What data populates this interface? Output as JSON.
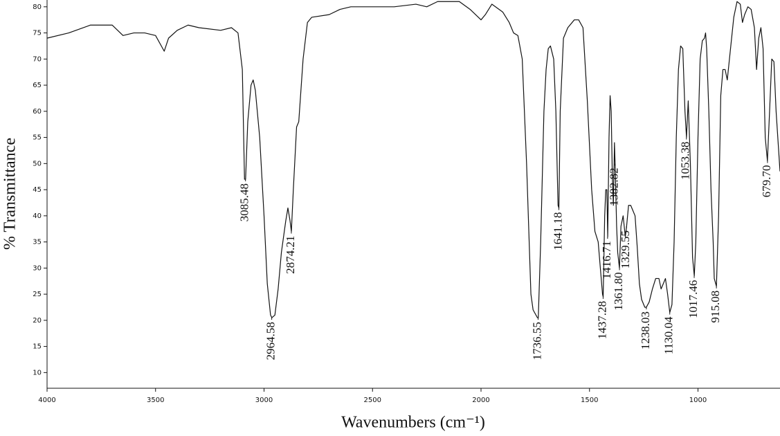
{
  "chart_data": {
    "type": "line",
    "x_label": "Wavenumbers (cm⁻¹)",
    "y_label": "% Transmittance",
    "xlim": [
      4000,
      622
    ],
    "ylim": [
      7,
      81.3
    ],
    "xticks": [
      4000,
      3500,
      3000,
      2500,
      2000,
      1500,
      1000
    ],
    "yticks": [
      10,
      15,
      20,
      25,
      30,
      35,
      40,
      45,
      50,
      55,
      60,
      65,
      70,
      75,
      80
    ],
    "grid": false,
    "x": [
      4000,
      3900,
      3800,
      3700,
      3650,
      3600,
      3550,
      3500,
      3460,
      3440,
      3400,
      3350,
      3300,
      3200,
      3150,
      3120,
      3100,
      3090,
      3085,
      3075,
      3060,
      3050,
      3040,
      3020,
      3000,
      2985,
      2970,
      2964,
      2950,
      2935,
      2920,
      2900,
      2890,
      2880,
      2874,
      2865,
      2850,
      2840,
      2820,
      2800,
      2780,
      2700,
      2650,
      2600,
      2500,
      2400,
      2300,
      2250,
      2200,
      2100,
      2050,
      2000,
      1980,
      1950,
      1900,
      1870,
      1850,
      1830,
      1810,
      1790,
      1770,
      1760,
      1740,
      1736,
      1725,
      1710,
      1700,
      1690,
      1680,
      1665,
      1655,
      1645,
      1641,
      1635,
      1620,
      1600,
      1570,
      1550,
      1530,
      1510,
      1490,
      1475,
      1460,
      1450,
      1440,
      1437,
      1430,
      1425,
      1420,
      1416,
      1410,
      1405,
      1400,
      1395,
      1390,
      1385,
      1382,
      1375,
      1370,
      1362,
      1355,
      1345,
      1335,
      1329,
      1320,
      1310,
      1300,
      1290,
      1280,
      1270,
      1260,
      1245,
      1238,
      1225,
      1210,
      1195,
      1180,
      1170,
      1160,
      1150,
      1140,
      1130,
      1120,
      1110,
      1100,
      1090,
      1080,
      1070,
      1060,
      1053,
      1045,
      1035,
      1025,
      1017,
      1010,
      1000,
      990,
      980,
      970,
      965,
      960,
      950,
      940,
      930,
      925,
      915,
      905,
      895,
      885,
      875,
      865,
      850,
      835,
      820,
      805,
      795,
      785,
      770,
      755,
      740,
      730,
      720,
      710,
      700,
      690,
      680,
      670,
      660,
      650,
      640,
      622
    ],
    "series": [
      {
        "color": "#111111",
        "values": [
          74,
          75,
          76.5,
          76.5,
          74.5,
          75,
          75,
          74.5,
          71.5,
          74,
          75.5,
          76.5,
          76,
          75.5,
          76,
          75,
          68,
          47,
          47,
          58,
          65,
          66,
          64,
          55,
          40,
          27,
          21,
          20.5,
          21,
          26,
          33,
          39,
          41.5,
          39,
          37,
          45,
          57,
          58,
          70,
          77,
          78,
          78.5,
          79.5,
          80,
          80,
          80,
          80.5,
          80,
          81,
          81,
          79.5,
          77.5,
          78.5,
          80.5,
          79,
          77,
          75,
          74.5,
          70,
          50,
          25,
          22,
          20.5,
          20.5,
          35,
          60,
          68,
          72,
          72.5,
          70,
          60,
          42,
          41.5,
          60,
          74,
          76,
          77.5,
          77.5,
          76,
          62,
          45,
          37,
          35,
          30,
          25,
          24.5,
          40,
          45,
          45,
          36,
          55,
          63,
          60,
          48,
          42,
          54,
          50,
          38,
          33,
          30,
          38,
          40,
          36,
          38,
          42,
          42,
          41,
          40,
          34,
          27,
          24,
          22.5,
          22.5,
          23.5,
          26,
          28,
          28,
          26,
          27,
          28,
          25,
          21.5,
          23,
          35,
          55,
          68,
          72.5,
          72,
          60,
          55,
          62,
          50,
          32,
          28.5,
          35,
          55,
          70,
          73.5,
          74,
          75,
          72,
          60,
          45,
          35,
          28,
          26.5,
          40,
          63,
          68,
          68,
          66,
          72,
          78,
          81,
          80.5,
          77,
          78.5,
          80,
          79.5,
          76,
          68,
          74,
          76,
          72,
          55,
          50.5,
          60,
          70,
          69.5,
          60,
          48.5
        ]
      }
    ],
    "annotations": [
      {
        "label": "3085.48",
        "x": 3085.48,
        "y": 47
      },
      {
        "label": "2964.58",
        "x": 2964.58,
        "y": 20.5
      },
      {
        "label": "2874.21",
        "x": 2874.21,
        "y": 37
      },
      {
        "label": "1736.55",
        "x": 1736.55,
        "y": 20.5
      },
      {
        "label": "1641.18",
        "x": 1641.18,
        "y": 41.5
      },
      {
        "label": "1437.28",
        "x": 1437.28,
        "y": 24.5
      },
      {
        "label": "1416.71",
        "x": 1416.71,
        "y": 36
      },
      {
        "label": "1382.82",
        "x": 1382.82,
        "y": 50
      },
      {
        "label": "1361.80",
        "x": 1361.8,
        "y": 30
      },
      {
        "label": "1329.55",
        "x": 1329.55,
        "y": 38
      },
      {
        "label": "1238.03",
        "x": 1238.03,
        "y": 22.5
      },
      {
        "label": "1130.04",
        "x": 1130.04,
        "y": 21.5
      },
      {
        "label": "1053.38",
        "x": 1053.38,
        "y": 55
      },
      {
        "label": "1017.46",
        "x": 1017.46,
        "y": 28.5
      },
      {
        "label": "915.08",
        "x": 915.08,
        "y": 26.5
      },
      {
        "label": "679.70",
        "x": 679.7,
        "y": 50.5
      }
    ]
  }
}
